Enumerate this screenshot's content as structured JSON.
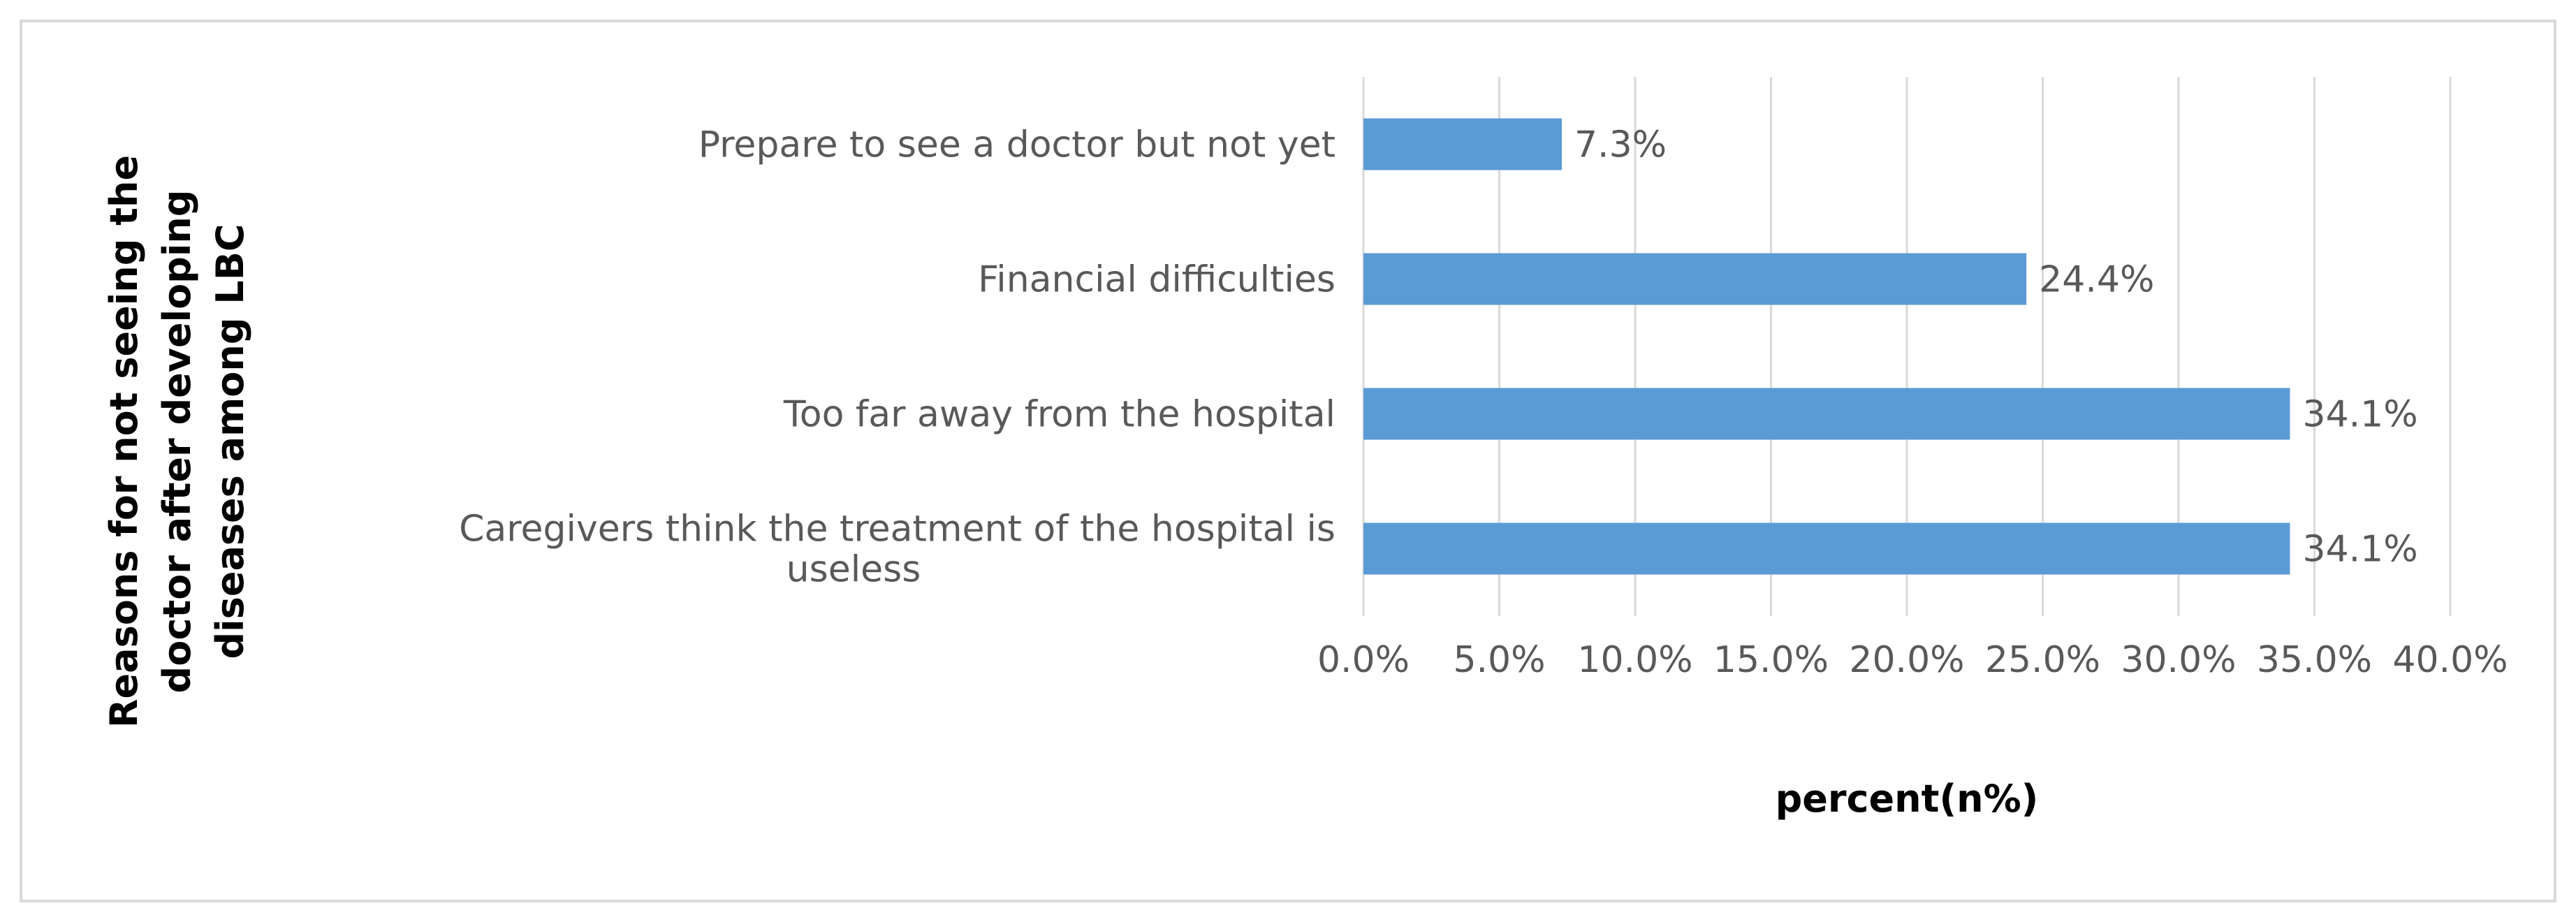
{
  "chart_data": {
    "type": "bar",
    "orientation": "horizontal",
    "categories": [
      "Prepare to see a doctor but not yet",
      "Financial difficulties",
      "Too far away from the hospital",
      "Caregivers think the treatment of the hospital is useless"
    ],
    "category_lines": [
      [
        "Prepare to see a doctor but not yet"
      ],
      [
        "Financial difficulties"
      ],
      [
        "Too far away from the hospital"
      ],
      [
        "Caregivers think the treatment of the hospital is",
        "useless"
      ]
    ],
    "values": [
      7.3,
      24.4,
      34.1,
      34.1
    ],
    "data_labels": [
      "7.3%",
      "24.4%",
      "34.1%",
      "34.1%"
    ],
    "xlim": [
      0,
      40
    ],
    "x_ticks": [
      0,
      5,
      10,
      15,
      20,
      25,
      30,
      35,
      40
    ],
    "x_tick_labels": [
      "0.0%",
      "5.0%",
      "10.0%",
      "15.0%",
      "20.0%",
      "25.0%",
      "30.0%",
      "35.0%",
      "40.0%"
    ],
    "xlabel": "percent(n%)",
    "ylabel_lines": [
      "Reasons for not seeing the",
      "doctor after developing",
      "diseases among LBC"
    ],
    "grid": "vertical",
    "legend": "none",
    "bar_color": "#5b9bd5",
    "grid_color": "#d9d9d9"
  }
}
